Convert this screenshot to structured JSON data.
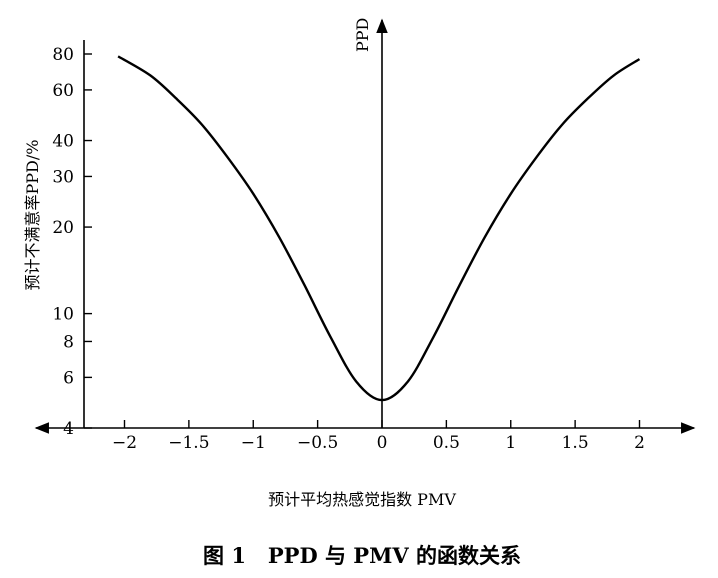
{
  "chart_data": {
    "type": "line",
    "ylabel": "预计不满意率PPD/%",
    "y_axis_title": "PPD",
    "xlabel": "预计平均热感觉指数 PMV",
    "caption": "图 1   PPD 与 PMV 的函数关系",
    "x_scale": "linear",
    "y_scale": "log",
    "xlim": [
      -2.3,
      2.3
    ],
    "ylim": [
      4,
      100
    ],
    "x_ticks": [
      -2,
      -1.5,
      -1,
      -0.5,
      0,
      0.5,
      1,
      1.5,
      2
    ],
    "x_tick_labels": [
      "−2",
      "−1.5",
      "−1",
      "−0.5",
      "0",
      "0.5",
      "1",
      "1.5",
      "2"
    ],
    "y_ticks": [
      4,
      6,
      8,
      10,
      20,
      30,
      40,
      60,
      80
    ],
    "y_tick_labels": [
      "4",
      "6",
      "8",
      "10",
      "20",
      "30",
      "40",
      "60",
      "80"
    ],
    "grid": false,
    "series": [
      {
        "x": [
          -2.05,
          -1.8,
          -1.6,
          -1.4,
          -1.2,
          -1.0,
          -0.8,
          -0.6,
          -0.4,
          -0.2,
          0,
          0.2,
          0.4,
          0.6,
          0.8,
          1.0,
          1.2,
          1.4,
          1.6,
          1.8,
          2.0
        ],
        "y": [
          78.5,
          67.4,
          56.1,
          45.5,
          35.0,
          26.1,
          18.5,
          12.5,
          8.3,
          5.8,
          5.0,
          5.8,
          8.3,
          12.5,
          18.5,
          26.1,
          35.0,
          45.5,
          56.1,
          67.4,
          76.8
        ]
      }
    ]
  }
}
